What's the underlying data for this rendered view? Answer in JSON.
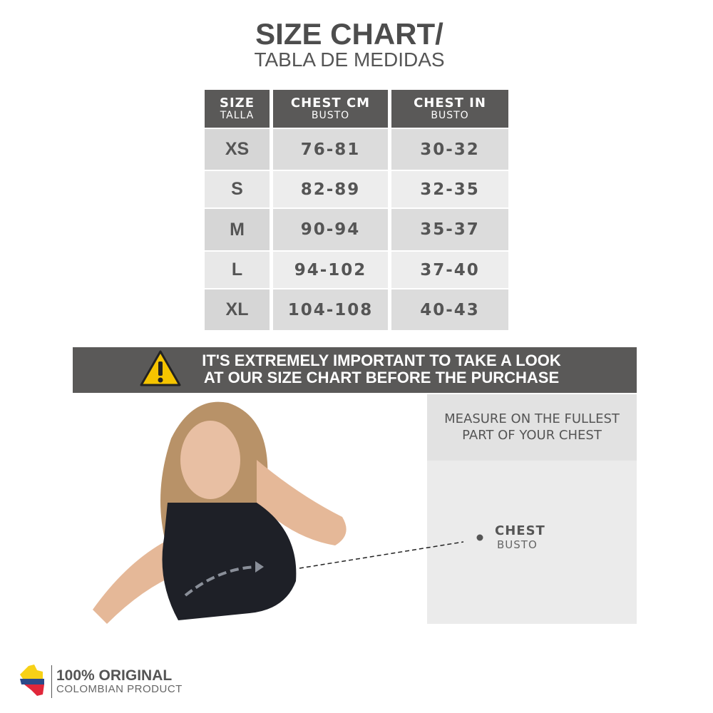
{
  "title": {
    "line1": "SIZE CHART/",
    "line2": "TABLA DE MEDIDAS"
  },
  "table": {
    "headers": [
      {
        "main": "SIZE",
        "sub": "TALLA"
      },
      {
        "main": "CHEST CM",
        "sub": "BUSTO"
      },
      {
        "main": "CHEST IN",
        "sub": "BUSTO"
      }
    ],
    "rows": [
      [
        "XS",
        "76-81",
        "30-32"
      ],
      [
        "S",
        "82-89",
        "32-35"
      ],
      [
        "M",
        "90-94",
        "35-37"
      ],
      [
        "L",
        "94-102",
        "37-40"
      ],
      [
        "XL",
        "104-108",
        "40-43"
      ]
    ]
  },
  "warning": {
    "icon": "warning-triangle-icon",
    "line1": "IT'S EXTREMELY IMPORTANT TO TAKE A LOOK",
    "line2": "AT OUR SIZE CHART BEFORE THE PURCHASE"
  },
  "measure": {
    "line1": "MEASURE ON THE FULLEST",
    "line2": "PART OF YOUR CHEST",
    "label": "CHEST",
    "sublabel": "BUSTO"
  },
  "badge": {
    "line1": "100% ORIGINAL",
    "line2": "COLOMBIAN PRODUCT"
  },
  "colors": {
    "header": "#5a5958",
    "warning": "#f5c400",
    "flag_yellow": "#f7d117",
    "flag_blue": "#2b4a8a",
    "flag_red": "#e0273a"
  }
}
